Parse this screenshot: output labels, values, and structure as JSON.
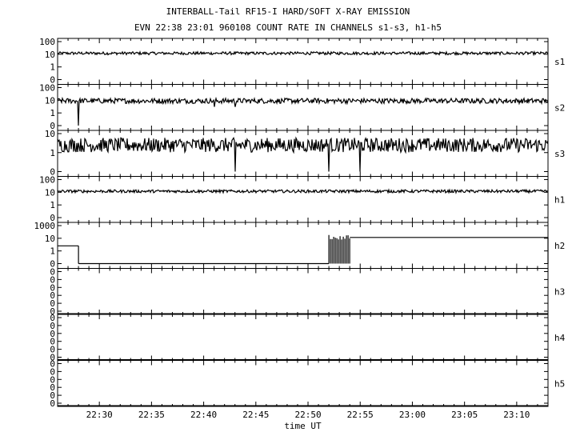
{
  "title_line1": "INTERBALL-Tail RF15-I HARD/SOFT X-RAY EMISSION",
  "title_line2": "EVN 22:38 23:01 960108  COUNT RATE IN CHANNELS s1-s3, h1-h5",
  "chart_data": {
    "type": "line",
    "xlabel": "time UT",
    "x_ticks": [
      "22:30",
      "22:35",
      "22:40",
      "22:45",
      "22:50",
      "22:55",
      "23:00",
      "23:05",
      "23:10"
    ],
    "x_range": [
      "22:26",
      "23:13"
    ],
    "y_scale": "log",
    "grid": false,
    "panels": [
      {
        "name": "s1",
        "y_ticks": [
          "100",
          "10",
          "1",
          "0"
        ],
        "baseline": 12,
        "noise": 1.3,
        "dips": []
      },
      {
        "name": "s2",
        "y_ticks": [
          "100",
          "10",
          "1",
          "0"
        ],
        "baseline": 9,
        "noise": 1.6,
        "dips": [
          {
            "time": "22:28",
            "value": 0.3
          },
          {
            "time": "22:41",
            "value": 3
          },
          {
            "time": "22:43",
            "value": 3
          }
        ]
      },
      {
        "name": "s3",
        "y_ticks": [
          "10",
          "1",
          "0"
        ],
        "baseline": 2.5,
        "noise": 2.4,
        "dips": [
          {
            "time": "22:43",
            "value": 0
          },
          {
            "time": "22:52",
            "value": 0
          },
          {
            "time": "22:55",
            "value": 0
          }
        ]
      },
      {
        "name": "h1",
        "y_ticks": [
          "100",
          "10",
          "1",
          "0"
        ],
        "baseline": 12,
        "noise": 1.3,
        "dips": []
      },
      {
        "name": "h2",
        "y_ticks": [
          "1000",
          "10",
          "1",
          "0"
        ],
        "segments": [
          {
            "from": "22:26",
            "to": "22:28",
            "value": 4
          },
          {
            "from": "22:28",
            "to": "22:52",
            "value": 0
          },
          {
            "from": "22:52",
            "to": "22:54",
            "value": "spikes",
            "peak": 80
          },
          {
            "from": "22:54",
            "to": "23:13",
            "value": 40
          }
        ]
      },
      {
        "name": "h3",
        "y_ticks": [
          "0",
          "0",
          "0",
          "0",
          "0",
          "0"
        ],
        "flat": true
      },
      {
        "name": "h4",
        "y_ticks": [
          "0",
          "0",
          "0",
          "0",
          "0",
          "0"
        ],
        "flat": true
      },
      {
        "name": "h5",
        "y_ticks": [
          "0",
          "0",
          "0",
          "0",
          "0",
          "0"
        ],
        "flat": true
      }
    ]
  }
}
